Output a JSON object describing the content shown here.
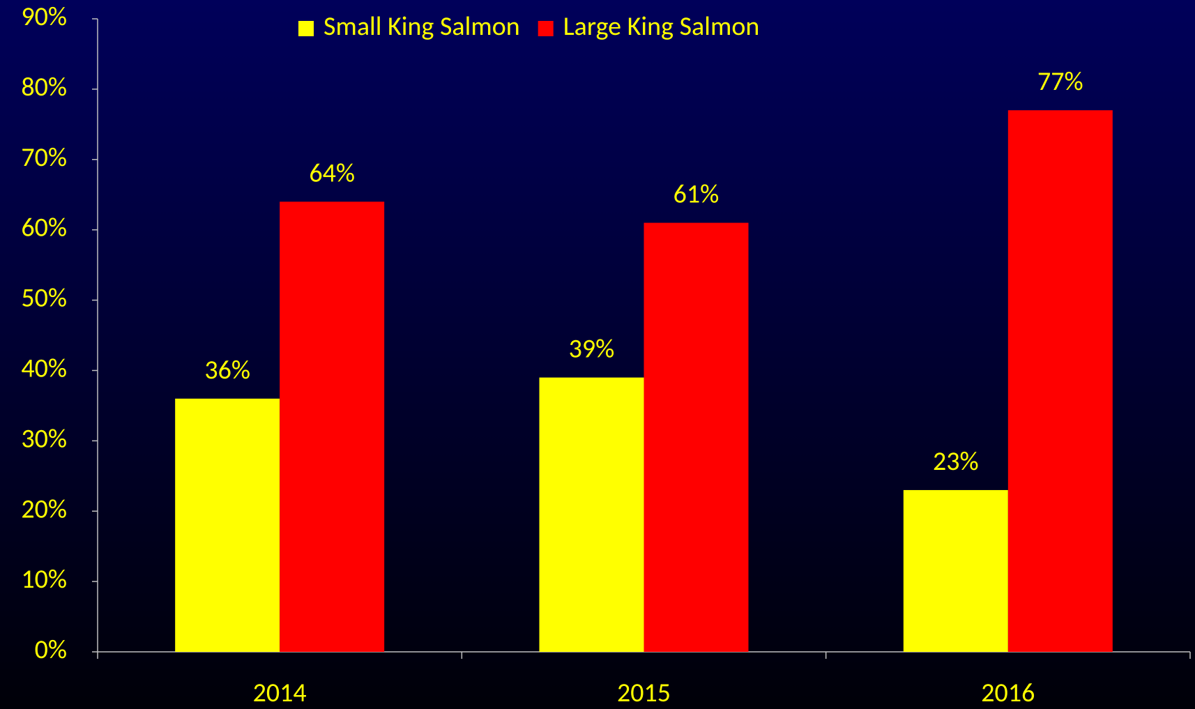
{
  "chart_data": {
    "type": "bar",
    "categories": [
      "2014",
      "2015",
      "2016"
    ],
    "series": [
      {
        "name": "Small King Salmon",
        "color": "#ffff00",
        "values": [
          36,
          39,
          23
        ],
        "value_labels": [
          "36%",
          "39%",
          "23%"
        ]
      },
      {
        "name": "Large King Salmon",
        "color": "#ff0000",
        "values": [
          64,
          61,
          77
        ],
        "value_labels": [
          "64%",
          "61%",
          "77%"
        ]
      }
    ],
    "ylim": [
      0,
      90
    ],
    "yticks": [
      {
        "value": 0,
        "label": "0%"
      },
      {
        "value": 10,
        "label": "10%"
      },
      {
        "value": 20,
        "label": "20%"
      },
      {
        "value": 30,
        "label": "30%"
      },
      {
        "value": 40,
        "label": "40%"
      },
      {
        "value": 50,
        "label": "50%"
      },
      {
        "value": 60,
        "label": "60%"
      },
      {
        "value": 70,
        "label": "70%"
      },
      {
        "value": 80,
        "label": "80%"
      },
      {
        "value": 90,
        "label": "90%"
      }
    ],
    "legend": "top",
    "axis_color": "#c0c0c0",
    "background": [
      "#00005a",
      "#000008"
    ]
  }
}
